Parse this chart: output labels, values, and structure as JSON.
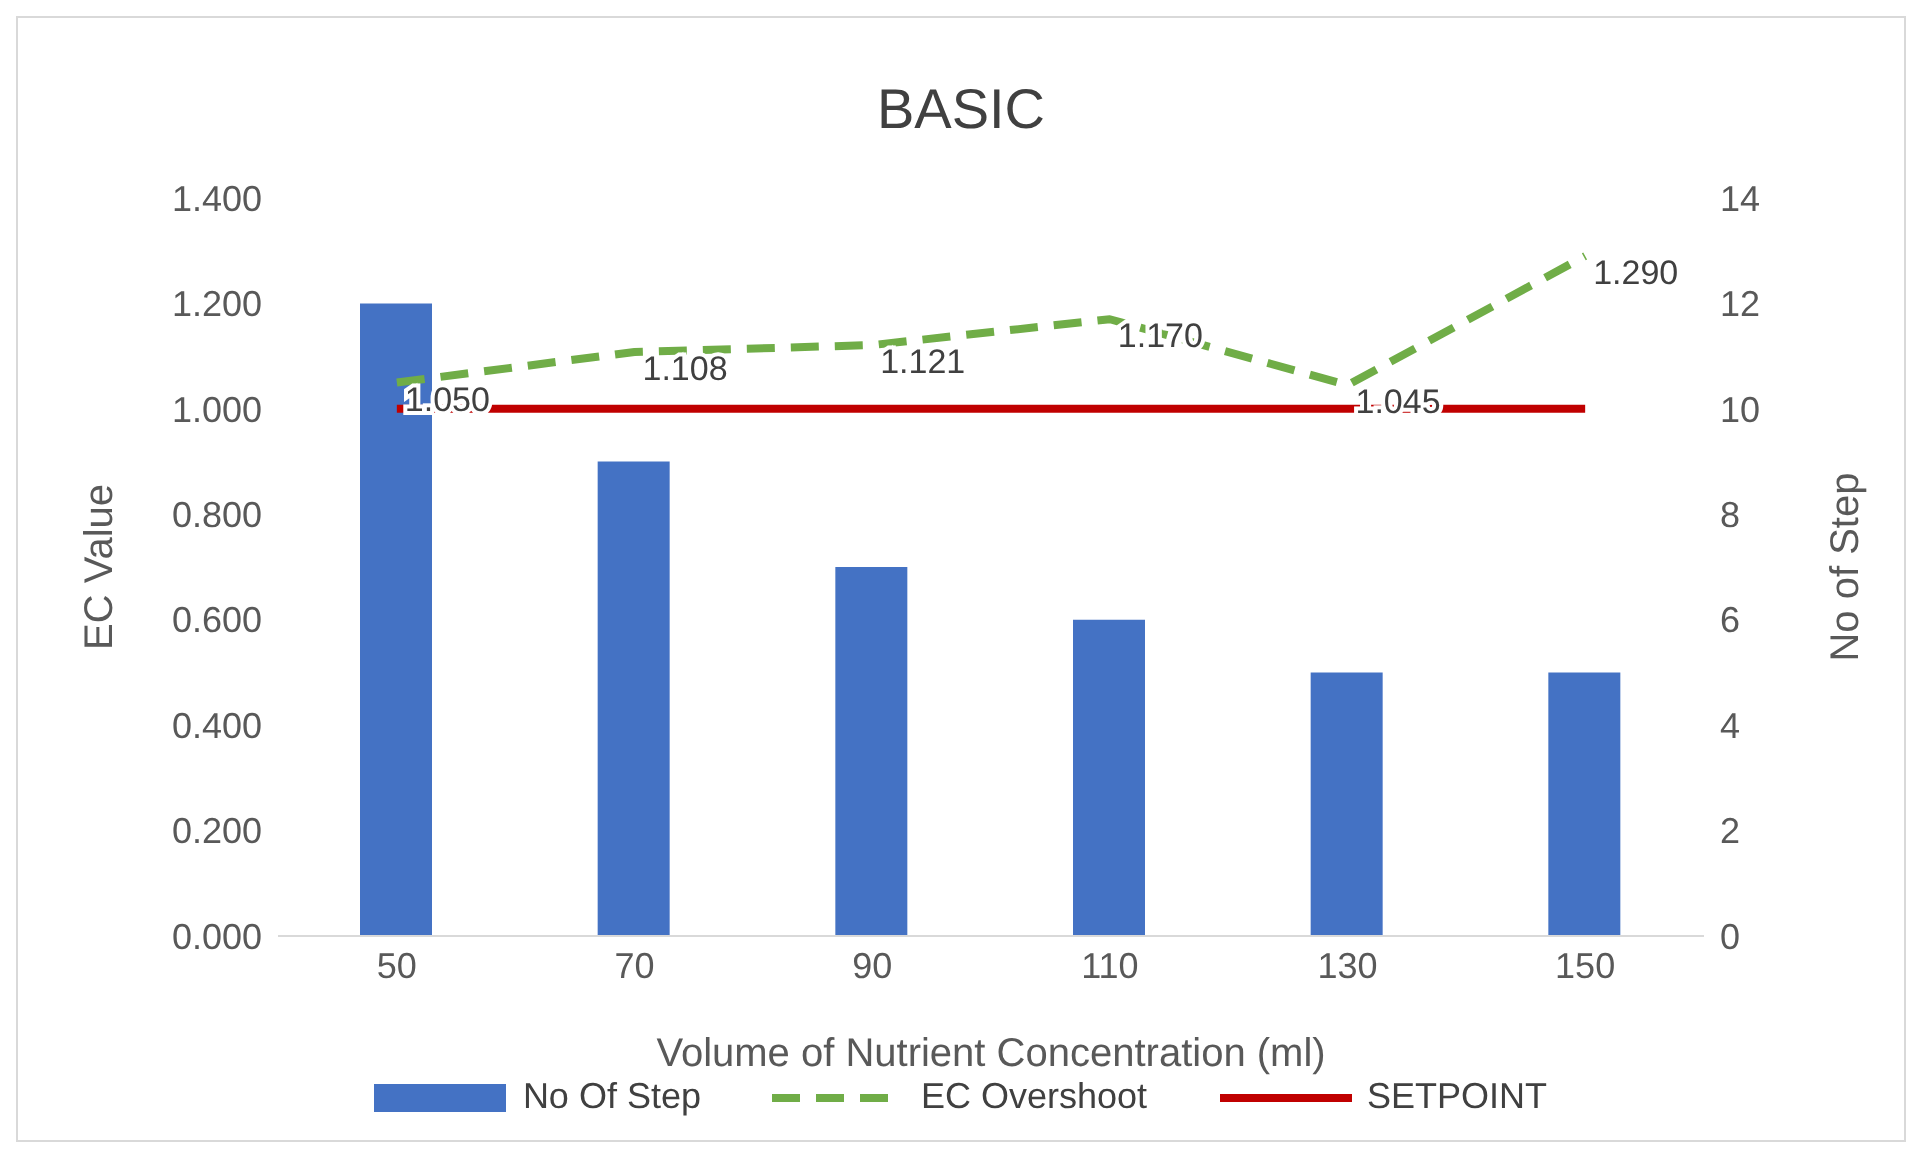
{
  "chart_data": {
    "type": "bar",
    "title": "BASIC",
    "xlabel": "Volume of Nutrient Concentration (ml)",
    "ylabel": "EC Value",
    "y2label": "No of Step",
    "categories": [
      "50",
      "70",
      "90",
      "110",
      "130",
      "150"
    ],
    "series": [
      {
        "name": "No Of Step",
        "axis": "y2",
        "color": "#4472c4",
        "values": [
          12,
          9,
          7,
          6,
          5,
          5
        ]
      },
      {
        "name": "EC Overshoot",
        "type": "line",
        "line_style": "dashed",
        "color": "#70ad47",
        "values": [
          1.05,
          1.108,
          1.121,
          1.17,
          1.045,
          1.29
        ],
        "value_labels": [
          "1.050",
          "1.108",
          "1.121",
          "1.170",
          "1.045",
          "1.290"
        ]
      },
      {
        "name": "SETPOINT",
        "type": "line",
        "line_style": "solid",
        "color": "#c00000",
        "values": [
          1,
          1,
          1,
          1,
          1,
          1
        ]
      }
    ],
    "ylim": [
      0,
      1.4
    ],
    "yticks": [
      {
        "value": 0,
        "label": "0.000"
      },
      {
        "value": 0.2,
        "label": "0.200"
      },
      {
        "value": 0.4,
        "label": "0.400"
      },
      {
        "value": 0.6,
        "label": "0.600"
      },
      {
        "value": 0.8,
        "label": "0.800"
      },
      {
        "value": 1,
        "label": "1.000"
      },
      {
        "value": 1.2,
        "label": "1.200"
      },
      {
        "value": 1.4,
        "label": "1.400"
      }
    ],
    "y2lim": [
      0,
      14
    ],
    "y2ticks": [
      0,
      2,
      4,
      6,
      8,
      10,
      12,
      14
    ],
    "grid": false,
    "legend": "bottom",
    "marker": "none"
  }
}
